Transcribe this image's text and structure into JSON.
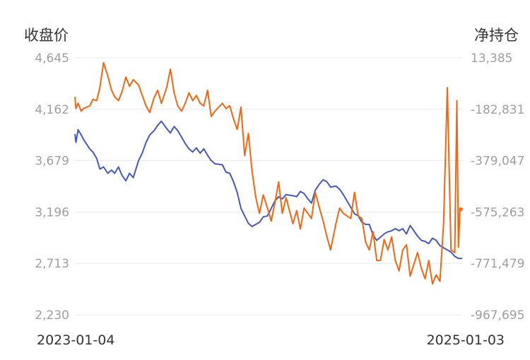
{
  "colors": {
    "close_price": "#4658c0",
    "net_position": "#f5650f",
    "grid": "#e8e8ee"
  },
  "chart_data": {
    "type": "line",
    "ylabel_left": "收盘价",
    "ylabel_right": "净持仓",
    "x_start": "2023-01-04",
    "x_end": "2025-01-03",
    "x_tick_labels": [
      "2023-01-04",
      "2025-01-03"
    ],
    "left_axis": {
      "ylim": [
        2230,
        4645
      ],
      "ticks": [
        "4,645",
        "4,162",
        "3,679",
        "3,196",
        "2,713",
        "2,230"
      ]
    },
    "right_axis": {
      "ylim": [
        -967695,
        13385
      ],
      "ticks": [
        "13,385",
        "-182,831",
        "-379,047",
        "-575,263",
        "-771,479",
        "-967,695"
      ]
    },
    "grid": true,
    "legend": "none",
    "series": [
      {
        "axis": "left",
        "color": "#4658c0",
        "x": [
          "2023-01-04",
          "2023-01-06",
          "2023-01-10",
          "2023-01-16",
          "2023-01-20",
          "2023-02-01",
          "2023-02-07",
          "2023-02-14",
          "2023-02-20",
          "2023-02-27",
          "2023-03-07",
          "2023-03-14",
          "2023-03-20",
          "2023-03-27",
          "2023-04-03",
          "2023-04-10",
          "2023-04-17",
          "2023-04-24",
          "2023-05-04",
          "2023-05-11",
          "2023-05-18",
          "2023-05-25",
          "2023-06-02",
          "2023-06-09",
          "2023-06-16",
          "2023-06-26",
          "2023-07-03",
          "2023-07-10",
          "2023-07-17",
          "2023-07-24",
          "2023-07-31",
          "2023-08-07",
          "2023-08-14",
          "2023-08-21",
          "2023-08-28",
          "2023-09-04",
          "2023-09-11",
          "2023-09-18",
          "2023-09-25",
          "2023-10-09",
          "2023-10-16",
          "2023-10-23",
          "2023-10-30",
          "2023-11-06",
          "2023-11-13",
          "2023-11-20",
          "2023-11-27",
          "2023-12-04",
          "2023-12-11",
          "2023-12-18",
          "2023-12-25",
          "2024-01-02",
          "2024-01-09",
          "2024-01-16",
          "2024-01-23",
          "2024-01-30",
          "2024-02-06",
          "2024-02-19",
          "2024-02-26",
          "2024-03-04",
          "2024-03-11",
          "2024-03-18",
          "2024-03-25",
          "2024-04-01",
          "2024-04-09",
          "2024-04-16",
          "2024-04-23",
          "2024-04-30",
          "2024-05-10",
          "2024-05-17",
          "2024-05-24",
          "2024-05-31",
          "2024-06-07",
          "2024-06-14",
          "2024-06-21",
          "2024-06-28",
          "2024-07-05",
          "2024-07-12",
          "2024-07-19",
          "2024-07-26",
          "2024-08-02",
          "2024-08-09",
          "2024-08-16",
          "2024-08-23",
          "2024-08-30",
          "2024-09-06",
          "2024-09-13",
          "2024-09-20",
          "2024-09-27",
          "2024-10-11",
          "2024-10-18",
          "2024-10-25",
          "2024-11-01",
          "2024-11-08",
          "2024-11-15",
          "2024-11-22",
          "2024-11-29",
          "2024-12-06",
          "2024-12-13",
          "2024-12-20",
          "2024-12-27",
          "2025-01-03"
        ],
        "values": [
          3930,
          3850,
          3970,
          3920,
          3880,
          3790,
          3760,
          3700,
          3600,
          3620,
          3560,
          3590,
          3560,
          3620,
          3540,
          3490,
          3560,
          3520,
          3680,
          3750,
          3850,
          3920,
          3960,
          4010,
          4050,
          3980,
          3940,
          4000,
          3960,
          3900,
          3840,
          3790,
          3760,
          3800,
          3750,
          3790,
          3730,
          3680,
          3650,
          3640,
          3570,
          3560,
          3480,
          3380,
          3230,
          3160,
          3090,
          3060,
          3080,
          3100,
          3150,
          3160,
          3230,
          3300,
          3340,
          3320,
          3360,
          3350,
          3340,
          3390,
          3370,
          3320,
          3280,
          3400,
          3460,
          3500,
          3480,
          3430,
          3440,
          3410,
          3360,
          3300,
          3240,
          3180,
          3160,
          3100,
          3080,
          3080,
          2980,
          2930,
          2960,
          2990,
          3010,
          3020,
          3040,
          3020,
          3040,
          2990,
          3070,
          2970,
          2930,
          2920,
          2900,
          2950,
          2930,
          2880,
          2860,
          2840,
          2820,
          2780,
          2760,
          2760
        ]
      },
      {
        "axis": "right",
        "color": "#f5650f",
        "x": [
          "2023-01-04",
          "2023-01-06",
          "2023-01-10",
          "2023-01-16",
          "2023-01-20",
          "2023-02-01",
          "2023-02-07",
          "2023-02-14",
          "2023-02-20",
          "2023-02-27",
          "2023-03-07",
          "2023-03-14",
          "2023-03-20",
          "2023-03-27",
          "2023-04-03",
          "2023-04-10",
          "2023-04-17",
          "2023-04-24",
          "2023-05-04",
          "2023-05-11",
          "2023-05-18",
          "2023-05-25",
          "2023-06-02",
          "2023-06-09",
          "2023-06-16",
          "2023-06-26",
          "2023-07-03",
          "2023-07-10",
          "2023-07-17",
          "2023-07-24",
          "2023-07-31",
          "2023-08-07",
          "2023-08-14",
          "2023-08-21",
          "2023-08-28",
          "2023-09-04",
          "2023-09-11",
          "2023-09-18",
          "2023-09-25",
          "2023-10-09",
          "2023-10-16",
          "2023-10-23",
          "2023-10-30",
          "2023-11-06",
          "2023-11-13",
          "2023-11-20",
          "2023-11-27",
          "2023-12-04",
          "2023-12-11",
          "2023-12-18",
          "2023-12-25",
          "2024-01-02",
          "2024-01-09",
          "2024-01-16",
          "2024-01-23",
          "2024-01-30",
          "2024-02-06",
          "2024-02-19",
          "2024-02-26",
          "2024-03-04",
          "2024-03-11",
          "2024-03-18",
          "2024-03-25",
          "2024-04-01",
          "2024-04-09",
          "2024-04-16",
          "2024-04-23",
          "2024-04-30",
          "2024-05-10",
          "2024-05-17",
          "2024-05-24",
          "2024-05-31",
          "2024-06-07",
          "2024-06-14",
          "2024-06-21",
          "2024-06-28",
          "2024-07-05",
          "2024-07-12",
          "2024-07-19",
          "2024-07-26",
          "2024-08-02",
          "2024-08-09",
          "2024-08-16",
          "2024-08-23",
          "2024-08-30",
          "2024-09-06",
          "2024-09-13",
          "2024-09-20",
          "2024-09-27",
          "2024-10-11",
          "2024-10-18",
          "2024-10-25",
          "2024-11-01",
          "2024-11-08",
          "2024-11-15",
          "2024-11-22",
          "2024-11-29",
          "2024-12-06",
          "2024-12-13",
          "2024-12-20",
          "2024-12-24",
          "2024-12-27",
          "2024-12-30",
          "2024-12-31",
          "2025-01-02",
          "2025-01-03"
        ],
        "values": [
          -135000,
          -180000,
          -160000,
          -190000,
          -180000,
          -170000,
          -145000,
          -150000,
          -100000,
          -5000,
          -55000,
          -110000,
          -135000,
          -150000,
          -115000,
          -60000,
          -95000,
          -70000,
          -90000,
          -130000,
          -170000,
          -195000,
          -140000,
          -110000,
          -160000,
          -100000,
          -30000,
          -120000,
          -170000,
          -190000,
          -160000,
          -120000,
          -150000,
          -130000,
          -160000,
          -170000,
          -110000,
          -210000,
          -190000,
          -160000,
          -180000,
          -170000,
          -220000,
          -260000,
          -175000,
          -360000,
          -275000,
          -420000,
          -520000,
          -580000,
          -510000,
          -560000,
          -610000,
          -540000,
          -460000,
          -580000,
          -520000,
          -620000,
          -570000,
          -640000,
          -560000,
          -580000,
          -600000,
          -500000,
          -560000,
          -610000,
          -670000,
          -720000,
          -620000,
          -560000,
          -580000,
          -590000,
          -600000,
          -500000,
          -590000,
          -600000,
          -690000,
          -720000,
          -650000,
          -760000,
          -760000,
          -680000,
          -720000,
          -670000,
          -760000,
          -800000,
          -720000,
          -700000,
          -820000,
          -730000,
          -790000,
          -830000,
          -760000,
          -850000,
          -815000,
          -840000,
          -620000,
          -100000,
          -720000,
          -730000,
          -150000,
          -710000,
          -560000,
          -560000,
          -570000,
          -560000
        ]
      }
    ]
  }
}
